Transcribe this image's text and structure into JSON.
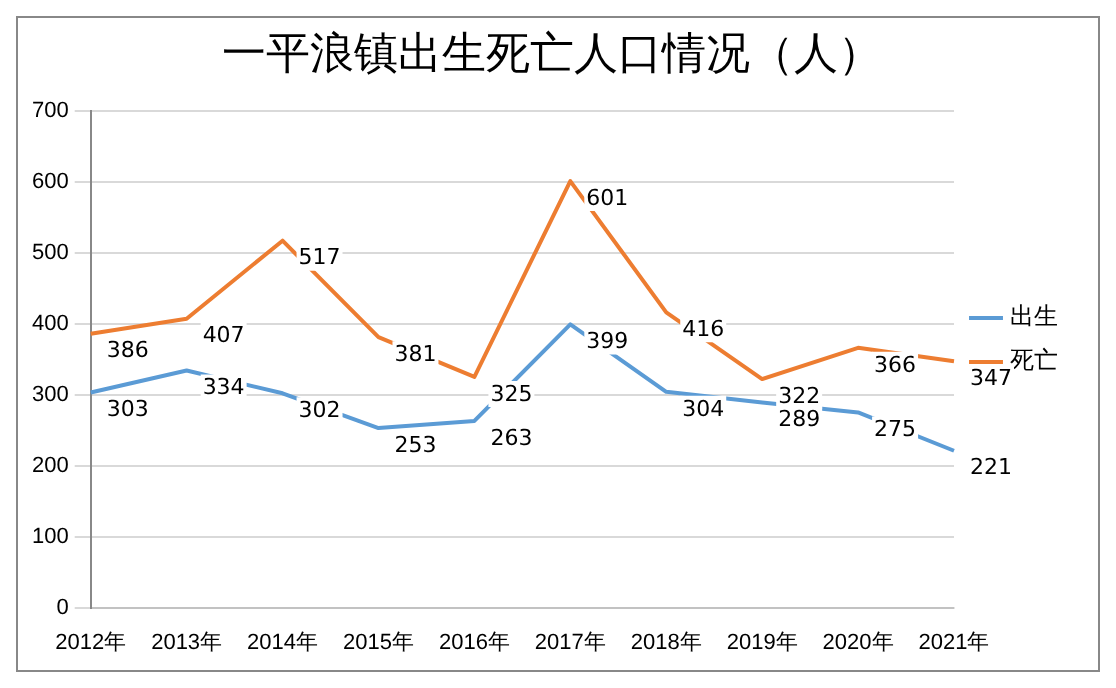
{
  "chart_data": {
    "type": "line",
    "title": "一平浪镇出生死亡人口情况（人）",
    "categories": [
      "2012年",
      "2013年",
      "2014年",
      "2015年",
      "2016年",
      "2017年",
      "2018年",
      "2019年",
      "2020年",
      "2021年"
    ],
    "series": [
      {
        "name": "出生",
        "color": "#5b9bd5",
        "values": [
          303,
          334,
          302,
          253,
          263,
          399,
          304,
          289,
          275,
          221
        ]
      },
      {
        "name": "死亡",
        "color": "#ed7d31",
        "values": [
          386,
          407,
          517,
          381,
          325,
          601,
          416,
          322,
          366,
          347
        ]
      }
    ],
    "ylim": [
      0,
      700
    ],
    "yticks": [
      0,
      100,
      200,
      300,
      400,
      500,
      600,
      700
    ],
    "grid": "y",
    "legend": "right",
    "marker": "none",
    "line_style": "solid",
    "data_labels": true
  }
}
